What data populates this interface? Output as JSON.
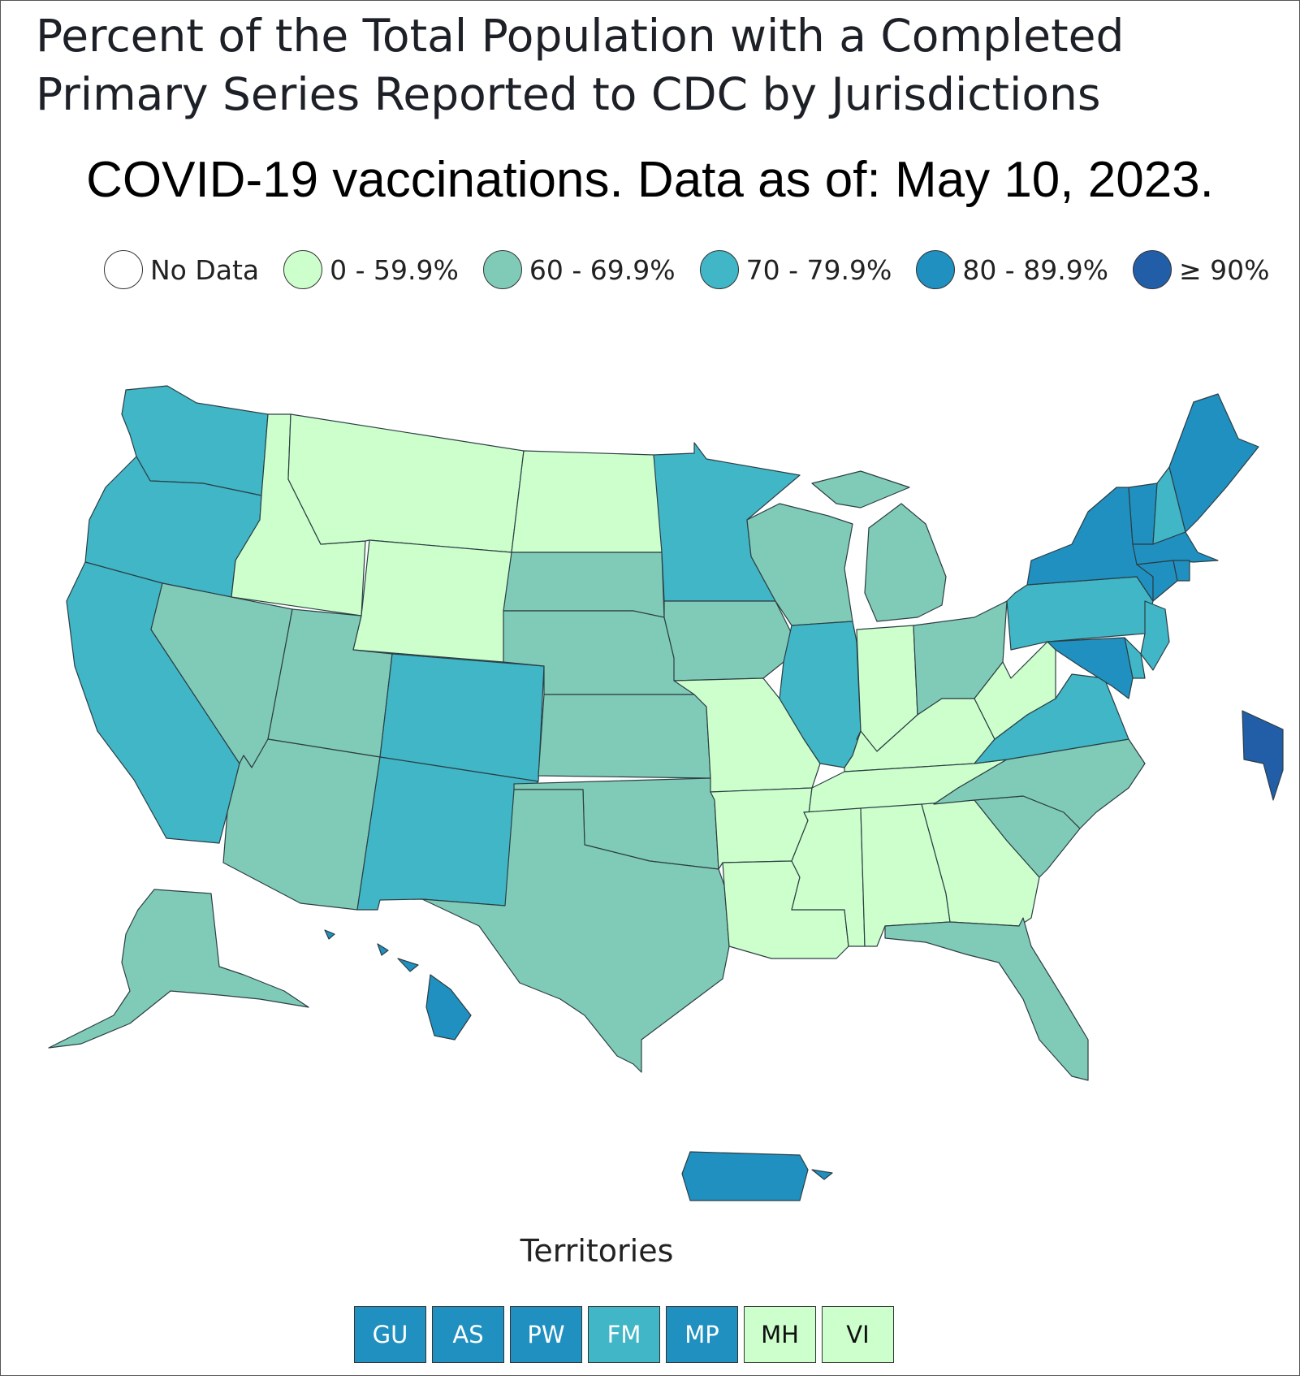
{
  "title": {
    "line1": "Percent of the Total Population with a Completed",
    "line2": "Primary Series Reported to CDC by Jurisdictions"
  },
  "subtitle": "COVID-19 vaccinations. Data as of: May 10, 2023.",
  "legend": [
    {
      "label": "No Data",
      "color": "#ffffff"
    },
    {
      "label": "0 - 59.9%",
      "color": "#ccffcc"
    },
    {
      "label": "60 - 69.9%",
      "color": "#80cbb7"
    },
    {
      "label": "70 - 79.9%",
      "color": "#40b6c6"
    },
    {
      "label": "80 - 89.9%",
      "color": "#1f90c0"
    },
    {
      "label": "≥ 90%",
      "color": "#225ea8"
    }
  ],
  "map": {
    "categories": {
      "WA": "70 - 79.9%",
      "OR": "70 - 79.9%",
      "CA": "70 - 79.9%",
      "NV": "60 - 69.9%",
      "ID": "0 - 59.9%",
      "MT": "0 - 59.9%",
      "WY": "0 - 59.9%",
      "UT": "60 - 69.9%",
      "AZ": "60 - 69.9%",
      "CO": "70 - 79.9%",
      "NM": "70 - 79.9%",
      "ND": "0 - 59.9%",
      "SD": "60 - 69.9%",
      "NE": "60 - 69.9%",
      "KS": "60 - 69.9%",
      "OK": "60 - 69.9%",
      "TX": "60 - 69.9%",
      "MN": "70 - 79.9%",
      "IA": "60 - 69.9%",
      "MO": "0 - 59.9%",
      "AR": "0 - 59.9%",
      "LA": "0 - 59.9%",
      "WI": "60 - 69.9%",
      "IL": "70 - 79.9%",
      "MI": "60 - 69.9%",
      "IN": "0 - 59.9%",
      "OH": "60 - 69.9%",
      "KY": "0 - 59.9%",
      "TN": "0 - 59.9%",
      "MS": "0 - 59.9%",
      "AL": "0 - 59.9%",
      "GA": "0 - 59.9%",
      "FL": "60 - 69.9%",
      "SC": "60 - 69.9%",
      "NC": "60 - 69.9%",
      "VA": "70 - 79.9%",
      "WV": "0 - 59.9%",
      "PA": "70 - 79.9%",
      "NY": "80 - 89.9%",
      "VT": "80 - 89.9%",
      "NH": "70 - 79.9%",
      "ME": "80 - 89.9%",
      "MA": "80 - 89.9%",
      "CT": "80 - 89.9%",
      "RI": "80 - 89.9%",
      "NJ": "70 - 79.9%",
      "DE": "70 - 79.9%",
      "MD": "80 - 89.9%",
      "DC": "≥ 90%",
      "AK": "60 - 69.9%",
      "HI": "80 - 89.9%",
      "PR": "80 - 89.9%"
    }
  },
  "territories": {
    "title": "Territories",
    "items": [
      {
        "code": "GU",
        "color": "#1f90c0"
      },
      {
        "code": "AS",
        "color": "#1f90c0"
      },
      {
        "code": "PW",
        "color": "#1f90c0"
      },
      {
        "code": "FM",
        "color": "#40b6c6"
      },
      {
        "code": "MP",
        "color": "#1f90c0"
      },
      {
        "code": "MH",
        "color": "#ccffcc"
      },
      {
        "code": "VI",
        "color": "#ccffcc"
      }
    ]
  }
}
